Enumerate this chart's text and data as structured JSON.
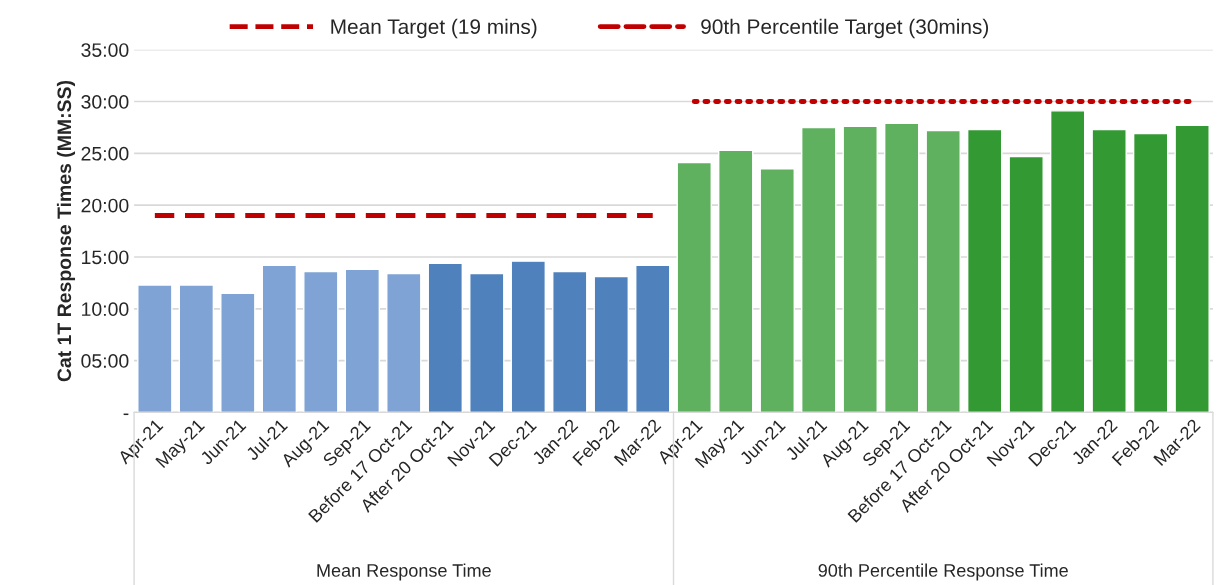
{
  "chart_data": {
    "type": "bar",
    "ylabel": "Cat 1T Response Times (MM:SS)",
    "categories": [
      "Apr-21",
      "May-21",
      "Jun-21",
      "Jul-21",
      "Aug-21",
      "Sep-21",
      "Before 17 Oct-21",
      "After 20 Oct-21",
      "Nov-21",
      "Dec-21",
      "Jan-22",
      "Feb-22",
      "Mar-22",
      "Apr-21",
      "May-21",
      "Jun-21",
      "Jul-21",
      "Aug-21",
      "Sep-21",
      "Before 17 Oct-21",
      "After 20 Oct-21",
      "Nov-21",
      "Dec-21",
      "Jan-22",
      "Feb-22",
      "Mar-22"
    ],
    "series": [
      {
        "values": [
          12.3,
          12.3,
          11.5,
          14.2,
          13.6,
          13.8,
          13.4,
          14.4,
          13.4,
          14.6,
          13.6,
          13.1,
          14.2,
          24.1,
          25.3,
          23.5,
          27.5,
          27.6,
          27.9,
          27.2,
          27.3,
          24.7,
          29.1,
          27.3,
          26.9,
          27.7
        ],
        "colors": [
          "#7ea3d4",
          "#7ea3d4",
          "#7ea3d4",
          "#7ea3d4",
          "#7ea3d4",
          "#7ea3d4",
          "#7ea3d4",
          "#4f81bd",
          "#4f81bd",
          "#4f81bd",
          "#4f81bd",
          "#4f81bd",
          "#4f81bd",
          "#5fb05f",
          "#5fb05f",
          "#5fb05f",
          "#5fb05f",
          "#5fb05f",
          "#5fb05f",
          "#5fb05f",
          "#339933",
          "#339933",
          "#339933",
          "#339933",
          "#339933",
          "#339933"
        ]
      },
      {
        "type": "line",
        "name": "Mean Target (19 mins)",
        "color": "#c00000",
        "line_style": "dashed",
        "values": [
          19,
          19,
          19,
          19,
          19,
          19,
          19,
          19,
          19,
          19,
          19,
          19,
          19,
          null,
          null,
          null,
          null,
          null,
          null,
          null,
          null,
          null,
          null,
          null,
          null,
          null
        ]
      },
      {
        "type": "line",
        "name": "90th Percentile Target (30mins)",
        "color": "#c00000",
        "line_style": "dotted",
        "values": [
          null,
          null,
          null,
          null,
          null,
          null,
          null,
          null,
          null,
          null,
          null,
          null,
          null,
          30,
          30,
          30,
          30,
          30,
          30,
          30,
          30,
          30,
          30,
          30,
          30,
          30
        ]
      }
    ],
    "annotations": [
      "Mean Response Time",
      "90th Percentile Response Time"
    ],
    "ylim": [
      0,
      35
    ],
    "yticks": [
      {
        "value": 0,
        "label": "-"
      },
      {
        "value": 5,
        "label": "05:00"
      },
      {
        "value": 10,
        "label": "10:00"
      },
      {
        "value": 15,
        "label": "15:00"
      },
      {
        "value": 20,
        "label": "20:00"
      },
      {
        "value": 25,
        "label": "25:00"
      },
      {
        "value": 30,
        "label": "30:00"
      },
      {
        "value": 35,
        "label": "35:00"
      }
    ],
    "grid": "y",
    "legend": "top"
  }
}
